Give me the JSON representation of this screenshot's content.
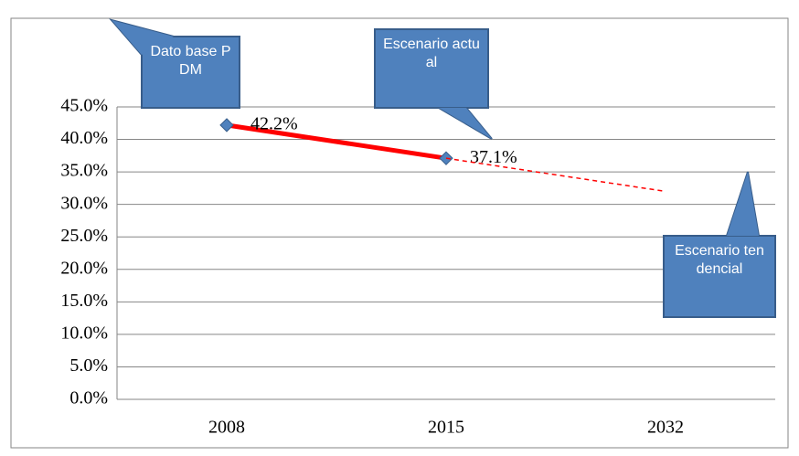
{
  "chart_data": {
    "type": "line",
    "categories": [
      "2008",
      "2015",
      "2032"
    ],
    "series": [
      {
        "color": "#ff0000",
        "marker": "diamond",
        "marker_color": "#4f81bd",
        "values": [
          42.2,
          37.1,
          null
        ],
        "value_labels": [
          "42.2%",
          "37.1%",
          null
        ]
      },
      {
        "color": "#ff0000",
        "dashed": true,
        "values": [
          null,
          37.1,
          32
        ]
      }
    ],
    "ylim": [
      0,
      45
    ],
    "yticks": [
      {
        "value": 0,
        "label": "0.0%"
      },
      {
        "value": 5,
        "label": "5.0%"
      },
      {
        "value": 10,
        "label": "10.0%"
      },
      {
        "value": 15,
        "label": "15.0%"
      },
      {
        "value": 20,
        "label": "20.0%"
      },
      {
        "value": 25,
        "label": "25.0%"
      },
      {
        "value": 30,
        "label": "30.0%"
      },
      {
        "value": 35,
        "label": "35.0%"
      },
      {
        "value": 40,
        "label": "40.0%"
      },
      {
        "value": 45,
        "label": "45.0%"
      }
    ],
    "grid": true,
    "annotations": [
      {
        "text": "Dato base PDM"
      },
      {
        "text": "Escenario actual"
      },
      {
        "text": "Escenario tendencial"
      }
    ]
  }
}
